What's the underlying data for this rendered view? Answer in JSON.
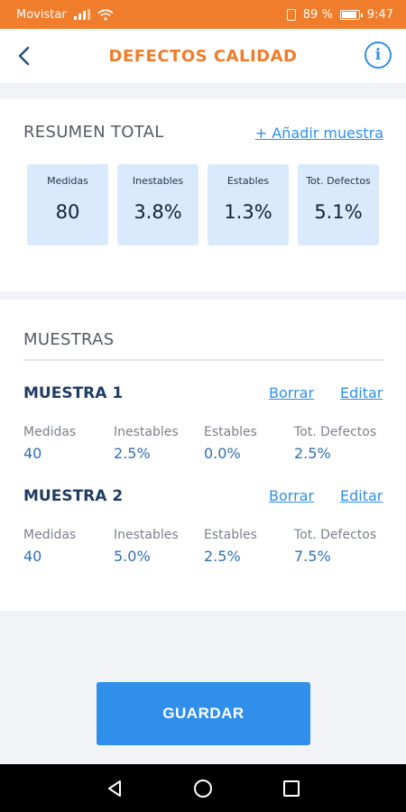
{
  "status_bar": {
    "carrier": "Movistar",
    "battery": "89 %",
    "time": "9:47"
  },
  "header": {
    "title": "DEFECTOS CALIDAD"
  },
  "summary": {
    "title": "RESUMEN TOTAL",
    "add_label": "+ Añadir muestra",
    "tiles": [
      {
        "label": "Medidas",
        "value": "80"
      },
      {
        "label": "Inestables",
        "value": "3.8%"
      },
      {
        "label": "Estables",
        "value": "1.3%"
      },
      {
        "label": "Tot. Defectos",
        "value": "5.1%"
      }
    ]
  },
  "samples": {
    "title": "MUESTRAS",
    "delete_label": "Borrar",
    "edit_label": "Editar",
    "items": [
      {
        "name": "MUESTRA 1",
        "metrics": [
          {
            "label": "Medidas",
            "value": "40"
          },
          {
            "label": "Inestables",
            "value": "2.5%"
          },
          {
            "label": "Estables",
            "value": "0.0%"
          },
          {
            "label": "Tot. Defectos",
            "value": "2.5%"
          }
        ]
      },
      {
        "name": "MUESTRA 2",
        "metrics": [
          {
            "label": "Medidas",
            "value": "40"
          },
          {
            "label": "Inestables",
            "value": "5.0%"
          },
          {
            "label": "Estables",
            "value": "2.5%"
          },
          {
            "label": "Tot. Defectos",
            "value": "7.5%"
          }
        ]
      }
    ]
  },
  "save_label": "GUARDAR",
  "colors": {
    "accent_orange": "#ef7c2a",
    "primary_blue": "#2f8fea",
    "tile_bg": "#d9eafc"
  }
}
